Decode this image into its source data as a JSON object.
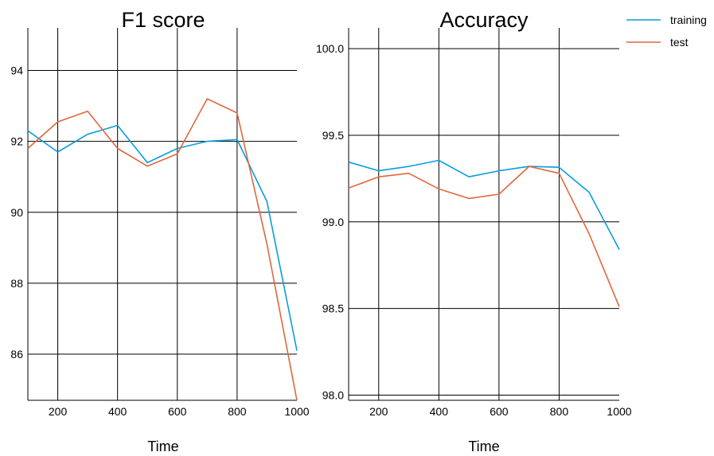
{
  "chart_data": [
    {
      "type": "line",
      "title": "F1 score",
      "xlabel": "Time",
      "ylabel": "",
      "xlim": [
        100,
        1000
      ],
      "ylim": [
        84.7,
        95.2
      ],
      "xticks": [
        200,
        400,
        600,
        800,
        1000
      ],
      "yticks": [
        86,
        88,
        90,
        92,
        94
      ],
      "ytick_labels": [
        "86",
        "88",
        "90",
        "92",
        "94"
      ],
      "grid": true,
      "x": [
        100,
        200,
        300,
        400,
        500,
        600,
        700,
        800,
        900,
        1000
      ],
      "series": [
        {
          "name": "training",
          "color": "#0a9de0",
          "values": [
            92.3,
            91.7,
            92.2,
            92.45,
            91.4,
            91.8,
            92.0,
            92.05,
            90.3,
            86.1
          ]
        },
        {
          "name": "test",
          "color": "#e1663e",
          "values": [
            91.8,
            92.55,
            92.85,
            91.8,
            91.3,
            91.65,
            93.2,
            92.8,
            89.1,
            84.7
          ]
        }
      ]
    },
    {
      "type": "line",
      "title": "Accuracy",
      "xlabel": "Time",
      "ylabel": "",
      "xlim": [
        100,
        1000
      ],
      "ylim": [
        97.97,
        100.12
      ],
      "xticks": [
        200,
        400,
        600,
        800,
        1000
      ],
      "yticks": [
        98.0,
        98.5,
        99.0,
        99.5,
        100.0
      ],
      "ytick_labels": [
        "98.0",
        "98.5",
        "99.0",
        "99.5",
        "100.0"
      ],
      "grid": true,
      "legend_position": "top-right, outside plot",
      "x": [
        100,
        200,
        300,
        400,
        500,
        600,
        700,
        800,
        900,
        1000
      ],
      "series": [
        {
          "name": "training",
          "color": "#0a9de0",
          "values": [
            99.345,
            99.295,
            99.32,
            99.355,
            99.26,
            99.295,
            99.32,
            99.315,
            99.17,
            98.84
          ]
        },
        {
          "name": "test",
          "color": "#e1663e",
          "values": [
            99.195,
            99.26,
            99.28,
            99.19,
            99.135,
            99.16,
            99.32,
            99.28,
            98.93,
            98.51
          ]
        }
      ]
    }
  ],
  "legend": {
    "items": [
      {
        "label": "training",
        "color": "#0a9de0"
      },
      {
        "label": "test",
        "color": "#e1663e"
      }
    ]
  }
}
